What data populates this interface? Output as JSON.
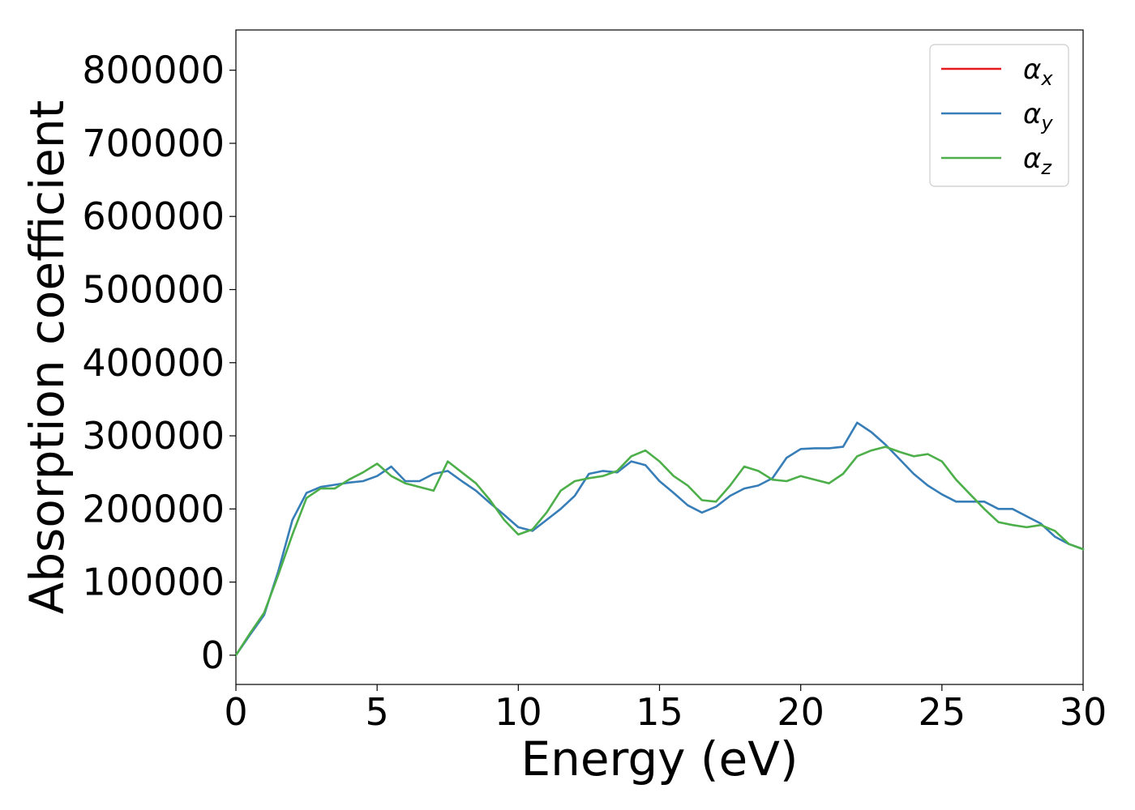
{
  "chart_data": {
    "type": "line",
    "title": "",
    "xlabel": "Energy (eV)",
    "ylabel": "Absorption coefficient",
    "xlim": [
      0,
      30
    ],
    "ylim": [
      -40000,
      855000
    ],
    "x_ticks": [
      "0",
      "5",
      "10",
      "15",
      "20",
      "25",
      "30"
    ],
    "y_ticks": [
      "0",
      "100000",
      "200000",
      "300000",
      "400000",
      "500000",
      "600000",
      "700000",
      "800000"
    ],
    "grid": false,
    "legend_position": "top-right",
    "series": [
      {
        "name": "α",
        "name_sub": "x",
        "color": "#e41a1c",
        "visible_line": false,
        "x": [
          0,
          0.5,
          1,
          1.5,
          2,
          2.5,
          3,
          3.5,
          4,
          4.5,
          5,
          5.5,
          6,
          6.5,
          7,
          7.5,
          8,
          8.5,
          9,
          9.5,
          10,
          10.5,
          11,
          11.5,
          12,
          12.5,
          13,
          13.5,
          14,
          14.5,
          15,
          15.5,
          16,
          16.5,
          17,
          17.5,
          18,
          18.5,
          19,
          19.5,
          20,
          20.5,
          21,
          21.5,
          22,
          22.5,
          23,
          23.5,
          24,
          24.5,
          25,
          25.5,
          26,
          26.5,
          27,
          27.5,
          28,
          28.5,
          29,
          29.5,
          30
        ],
        "y": [
          0,
          28000,
          55000,
          115000,
          185000,
          222000,
          230000,
          233000,
          236000,
          238000,
          245000,
          258000,
          238000,
          238000,
          248000,
          252000,
          238000,
          225000,
          208000,
          192000,
          175000,
          170000,
          185000,
          200000,
          218000,
          248000,
          252000,
          250000,
          265000,
          260000,
          238000,
          222000,
          205000,
          195000,
          203000,
          218000,
          228000,
          232000,
          242000,
          270000,
          282000,
          283000,
          283000,
          285000,
          318000,
          305000,
          288000,
          268000,
          248000,
          232000,
          220000,
          210000,
          210000,
          210000,
          200000,
          200000,
          190000,
          180000,
          162000,
          152000,
          145000
        ]
      },
      {
        "name": "α",
        "name_sub": "y",
        "color": "#377eb8",
        "visible_line": true,
        "x": [
          0,
          0.5,
          1,
          1.5,
          2,
          2.5,
          3,
          3.5,
          4,
          4.5,
          5,
          5.5,
          6,
          6.5,
          7,
          7.5,
          8,
          8.5,
          9,
          9.5,
          10,
          10.5,
          11,
          11.5,
          12,
          12.5,
          13,
          13.5,
          14,
          14.5,
          15,
          15.5,
          16,
          16.5,
          17,
          17.5,
          18,
          18.5,
          19,
          19.5,
          20,
          20.5,
          21,
          21.5,
          22,
          22.5,
          23,
          23.5,
          24,
          24.5,
          25,
          25.5,
          26,
          26.5,
          27,
          27.5,
          28,
          28.5,
          29,
          29.5,
          30
        ],
        "y": [
          0,
          28000,
          55000,
          115000,
          185000,
          222000,
          230000,
          233000,
          236000,
          238000,
          245000,
          258000,
          238000,
          238000,
          248000,
          252000,
          238000,
          225000,
          208000,
          192000,
          175000,
          170000,
          185000,
          200000,
          218000,
          248000,
          252000,
          250000,
          265000,
          260000,
          238000,
          222000,
          205000,
          195000,
          203000,
          218000,
          228000,
          232000,
          242000,
          270000,
          282000,
          283000,
          283000,
          285000,
          318000,
          305000,
          288000,
          268000,
          248000,
          232000,
          220000,
          210000,
          210000,
          210000,
          200000,
          200000,
          190000,
          180000,
          162000,
          152000,
          145000
        ]
      },
      {
        "name": "α",
        "name_sub": "z",
        "color": "#4daf4a",
        "visible_line": true,
        "x": [
          0,
          0.5,
          1,
          1.5,
          2,
          2.5,
          3,
          3.5,
          4,
          4.5,
          5,
          5.5,
          6,
          6.5,
          7,
          7.5,
          8,
          8.5,
          9,
          9.5,
          10,
          10.5,
          11,
          11.5,
          12,
          12.5,
          13,
          13.5,
          14,
          14.5,
          15,
          15.5,
          16,
          16.5,
          17,
          17.5,
          18,
          18.5,
          19,
          19.5,
          20,
          20.5,
          21,
          21.5,
          22,
          22.5,
          23,
          23.5,
          24,
          24.5,
          25,
          25.5,
          26,
          26.5,
          27,
          27.5,
          28,
          28.5,
          29,
          29.5,
          30
        ],
        "y": [
          0,
          30000,
          58000,
          110000,
          165000,
          215000,
          228000,
          228000,
          240000,
          250000,
          262000,
          245000,
          235000,
          230000,
          225000,
          265000,
          250000,
          235000,
          212000,
          185000,
          165000,
          172000,
          195000,
          225000,
          238000,
          242000,
          245000,
          252000,
          272000,
          280000,
          265000,
          245000,
          232000,
          212000,
          210000,
          232000,
          258000,
          252000,
          240000,
          238000,
          245000,
          240000,
          235000,
          248000,
          272000,
          280000,
          285000,
          278000,
          272000,
          275000,
          265000,
          240000,
          220000,
          200000,
          182000,
          178000,
          175000,
          178000,
          170000,
          152000,
          145000
        ]
      }
    ]
  }
}
